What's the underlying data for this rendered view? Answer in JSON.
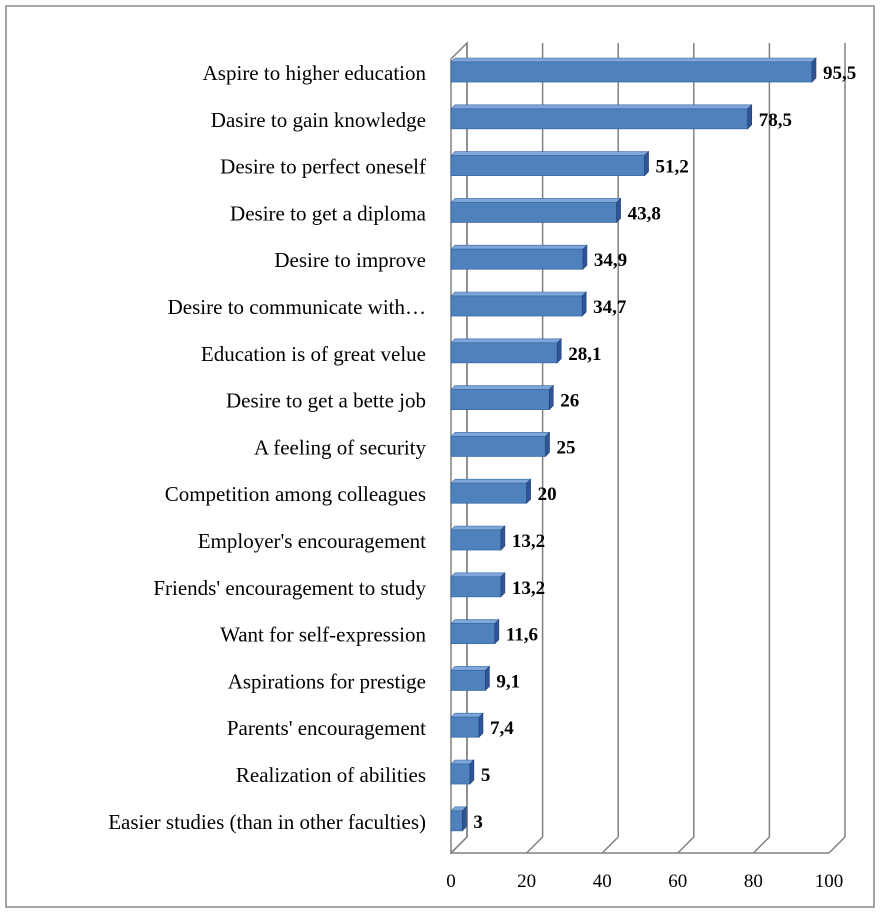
{
  "chart_data": {
    "type": "bar",
    "orientation": "horizontal",
    "categories": [
      "Aspire to higher education",
      "Dasire to gain knowledge",
      "Desire to perfect oneself",
      "Desire to get a diploma",
      "Desire to improve",
      "Desire to communicate with…",
      "Education is of great velue",
      "Desire to get a bette job",
      "A feeling of security",
      "Competition among colleagues",
      "Employer's encouragement",
      "Friends' encouragement to study",
      "Want for self-expression",
      "Aspirations for prestige",
      "Parents' encouragement",
      "Realization of abilities",
      "Easier studies (than in other faculties)"
    ],
    "values": [
      95.5,
      78.5,
      51.2,
      43.8,
      34.9,
      34.7,
      28.1,
      26,
      25,
      20,
      13.2,
      13.2,
      11.6,
      9.1,
      7.4,
      5,
      3
    ],
    "value_labels": [
      "95,5",
      "78,5",
      "51,2",
      "43,8",
      "34,9",
      "34,7",
      "28,1",
      "26",
      "25",
      "20",
      "13,2",
      "13,2",
      "11,6",
      "9,1",
      "7,4",
      "5",
      "3"
    ],
    "xlim": [
      0,
      100
    ],
    "x_ticks": [
      0,
      20,
      40,
      60,
      80,
      100
    ],
    "x_tick_labels": [
      "0",
      "20",
      "40",
      "60",
      "80",
      "100"
    ],
    "grid": "vertical",
    "style": "3d",
    "legend": "none",
    "bar_color": "#4f81bd",
    "bar_top_color": "#7ea6d8",
    "bar_side_color": "#2f5597"
  }
}
